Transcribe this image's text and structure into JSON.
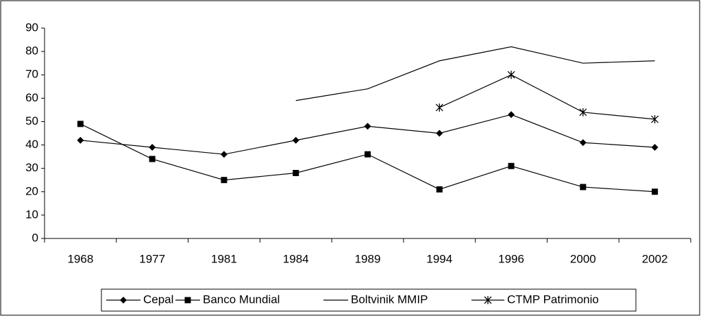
{
  "chart_data": {
    "type": "line",
    "categories": [
      "1968",
      "1977",
      "1981",
      "1984",
      "1989",
      "1994",
      "1996",
      "2000",
      "2002"
    ],
    "series": [
      {
        "name": "Cepal",
        "color": "#000000",
        "marker": "diamond",
        "values": [
          42,
          39,
          36,
          42,
          48,
          45,
          53,
          41,
          39
        ]
      },
      {
        "name": "Banco Mundial",
        "color": "#000000",
        "marker": "square",
        "values": [
          49,
          34,
          25,
          28,
          36,
          21,
          31,
          22,
          20
        ]
      },
      {
        "name": "Boltvinik MMIP",
        "color": "#000000",
        "marker": "none",
        "values": [
          null,
          null,
          null,
          59,
          64,
          76,
          82,
          75,
          76
        ]
      },
      {
        "name": "CTMP Patrimonio",
        "color": "#000000",
        "marker": "asterisk",
        "values": [
          null,
          null,
          null,
          null,
          null,
          56,
          70,
          54,
          51
        ]
      }
    ],
    "ylim": [
      0,
      90
    ],
    "yticks": [
      0,
      10,
      20,
      30,
      40,
      50,
      60,
      70,
      80,
      90
    ],
    "grid": false,
    "legend": "bottom"
  }
}
